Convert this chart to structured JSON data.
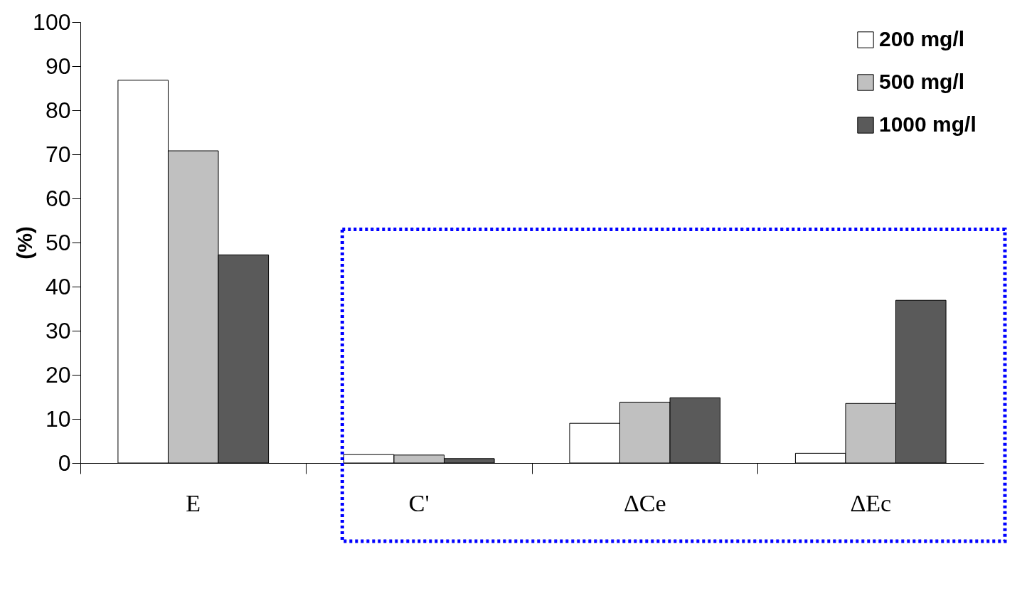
{
  "chart_data": {
    "type": "bar",
    "ylabel": "(%)",
    "categories": [
      "E",
      "C'",
      "ΔCe",
      "ΔEc"
    ],
    "series": [
      {
        "name": "200 mg/l",
        "color": "#ffffff",
        "values": [
          86.8,
          1.9,
          9.0,
          2.2
        ]
      },
      {
        "name": "500 mg/l",
        "color": "#c0c0c0",
        "values": [
          70.8,
          1.8,
          13.8,
          13.5
        ]
      },
      {
        "name": "1000 mg/l",
        "color": "#5a5a5a",
        "values": [
          47.2,
          1.0,
          14.8,
          36.9
        ]
      }
    ],
    "ylim": [
      0,
      100
    ],
    "yticks": [
      0,
      10,
      20,
      30,
      40,
      50,
      60,
      70,
      80,
      90,
      100
    ],
    "grid": false,
    "legend": "top right"
  }
}
